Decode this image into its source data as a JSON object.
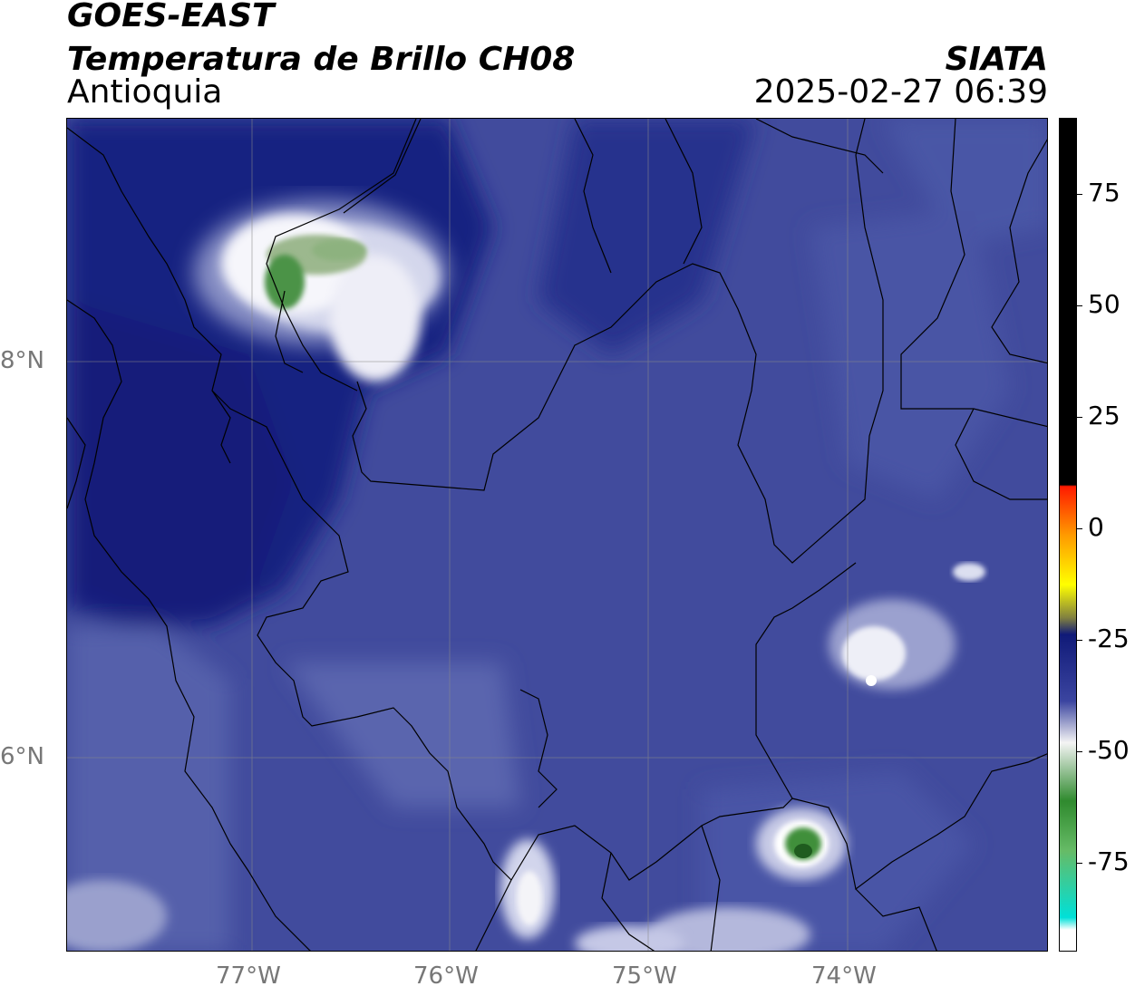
{
  "header": {
    "satellite": "GOES-EAST",
    "product": "Temperatura de Brillo CH08",
    "region": "Antioquia",
    "agency": "SIATA",
    "timestamp": "2025-02-27 06:39"
  },
  "map": {
    "lon_ticks": [
      "77°W",
      "76°W",
      "75°W",
      "74°W"
    ],
    "lat_ticks": [
      "8°N",
      "6°N"
    ],
    "background_color": "#3f4a9c",
    "border_color": "#000000",
    "grid_color": "#888888"
  },
  "colorbar": {
    "tick_labels": [
      "75",
      "50",
      "25",
      "0",
      "-25",
      "-50",
      "-75"
    ],
    "range": [
      -95,
      92
    ],
    "colors": {
      "cold_min": "#ffffff",
      "cyan": "#00e0d8",
      "green": "#2f8a2e",
      "white_mid": "#f4f4f4",
      "blue": "#3b45a0",
      "navy": "#101a78",
      "yellow": "#ffff00",
      "orange": "#ff9900",
      "red": "#ff1a00",
      "black": "#000000"
    }
  }
}
